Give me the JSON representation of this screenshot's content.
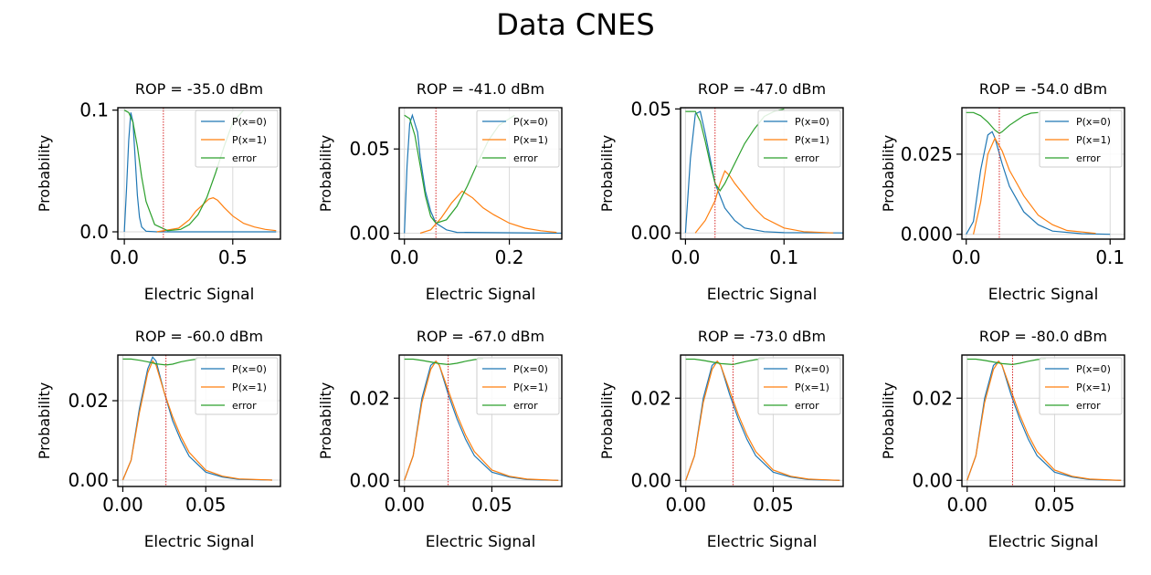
{
  "figure": {
    "title": "Data CNES"
  },
  "colors": {
    "p0": "#1f77b4",
    "p1": "#ff7f0e",
    "error": "#2ca02c",
    "threshold": "#d62728",
    "grid": "#d9d9d9"
  },
  "chart_data": [
    {
      "type": "line",
      "title": "ROP = -35.0 dBm",
      "xlabel": "Electric Signal",
      "ylabel": "Probability",
      "xlim": [
        -0.03,
        0.72
      ],
      "ylim": [
        -0.006,
        0.102
      ],
      "xticks": [
        0.0,
        0.5
      ],
      "xtick_labels": [
        "0.0",
        "0.5"
      ],
      "yticks": [
        0.0,
        0.1
      ],
      "ytick_labels": [
        "0.0",
        "0.1"
      ],
      "threshold": 0.18,
      "legend": "upper right",
      "grid": true,
      "series": [
        {
          "name": "P(x=0)",
          "x": [
            0.0,
            0.01,
            0.02,
            0.03,
            0.04,
            0.05,
            0.06,
            0.07,
            0.08,
            0.1,
            0.15,
            0.25,
            0.7
          ],
          "y": [
            0.0,
            0.035,
            0.075,
            0.098,
            0.09,
            0.06,
            0.03,
            0.012,
            0.004,
            0.0005,
            0.0,
            0.0,
            0.0
          ]
        },
        {
          "name": "P(x=1)",
          "x": [
            0.15,
            0.25,
            0.3,
            0.33,
            0.36,
            0.39,
            0.41,
            0.43,
            0.46,
            0.5,
            0.55,
            0.6,
            0.65,
            0.7
          ],
          "y": [
            0.0,
            0.003,
            0.01,
            0.017,
            0.022,
            0.027,
            0.028,
            0.026,
            0.02,
            0.013,
            0.007,
            0.004,
            0.002,
            0.001
          ]
        },
        {
          "name": "error",
          "x": [
            0.0,
            0.02,
            0.04,
            0.06,
            0.08,
            0.1,
            0.14,
            0.2,
            0.26,
            0.3,
            0.34,
            0.38,
            0.42,
            0.46,
            0.5,
            0.55
          ],
          "y": [
            0.1,
            0.098,
            0.09,
            0.07,
            0.045,
            0.025,
            0.006,
            0.001,
            0.002,
            0.006,
            0.014,
            0.028,
            0.048,
            0.07,
            0.09,
            0.1
          ]
        }
      ]
    },
    {
      "type": "line",
      "title": "ROP = -41.0 dBm",
      "xlabel": "Electric Signal",
      "ylabel": "Probability",
      "xlim": [
        -0.01,
        0.3
      ],
      "ylim": [
        -0.0035,
        0.0745
      ],
      "xticks": [
        0.0,
        0.2
      ],
      "xtick_labels": [
        "0.0",
        "0.2"
      ],
      "yticks": [
        0.0,
        0.05
      ],
      "ytick_labels": [
        "0.00",
        "0.05"
      ],
      "threshold": 0.06,
      "legend": "upper right",
      "grid": true,
      "series": [
        {
          "name": "P(x=0)",
          "x": [
            0.0,
            0.005,
            0.01,
            0.015,
            0.02,
            0.025,
            0.03,
            0.035,
            0.04,
            0.05,
            0.06,
            0.08,
            0.1,
            0.3
          ],
          "y": [
            0.0,
            0.04,
            0.065,
            0.07,
            0.065,
            0.06,
            0.045,
            0.035,
            0.025,
            0.013,
            0.006,
            0.002,
            0.0005,
            0.0
          ]
        },
        {
          "name": "P(x=1)",
          "x": [
            0.03,
            0.05,
            0.07,
            0.09,
            0.11,
            0.13,
            0.15,
            0.17,
            0.2,
            0.23,
            0.26,
            0.29
          ],
          "y": [
            0.0,
            0.002,
            0.009,
            0.018,
            0.025,
            0.021,
            0.015,
            0.011,
            0.006,
            0.003,
            0.0015,
            0.0005
          ]
        },
        {
          "name": "error",
          "x": [
            0.0,
            0.01,
            0.02,
            0.03,
            0.04,
            0.05,
            0.06,
            0.08,
            0.1,
            0.12,
            0.14,
            0.16,
            0.18,
            0.21
          ],
          "y": [
            0.07,
            0.068,
            0.058,
            0.04,
            0.022,
            0.01,
            0.006,
            0.008,
            0.016,
            0.028,
            0.042,
            0.055,
            0.064,
            0.07
          ]
        }
      ]
    },
    {
      "type": "line",
      "title": "ROP = -47.0 dBm",
      "xlabel": "Electric Signal",
      "ylabel": "Probability",
      "xlim": [
        -0.005,
        0.16
      ],
      "ylim": [
        -0.0025,
        0.0505
      ],
      "xticks": [
        0.0,
        0.1
      ],
      "xtick_labels": [
        "0.0",
        "0.1"
      ],
      "yticks": [
        0.0,
        0.05
      ],
      "ytick_labels": [
        "0.00",
        "0.05"
      ],
      "threshold": 0.03,
      "legend": "upper right",
      "grid": true,
      "series": [
        {
          "name": "P(x=0)",
          "x": [
            0.0,
            0.005,
            0.01,
            0.015,
            0.02,
            0.025,
            0.03,
            0.04,
            0.05,
            0.06,
            0.08,
            0.1,
            0.16
          ],
          "y": [
            0.0,
            0.03,
            0.048,
            0.049,
            0.04,
            0.03,
            0.02,
            0.01,
            0.005,
            0.002,
            0.0005,
            0.0001,
            0.0
          ]
        },
        {
          "name": "P(x=1)",
          "x": [
            0.01,
            0.02,
            0.03,
            0.035,
            0.04,
            0.045,
            0.05,
            0.06,
            0.07,
            0.08,
            0.1,
            0.12,
            0.15
          ],
          "y": [
            0.0,
            0.005,
            0.013,
            0.02,
            0.025,
            0.023,
            0.02,
            0.015,
            0.01,
            0.006,
            0.002,
            0.0005,
            0.0
          ]
        },
        {
          "name": "error",
          "x": [
            0.0,
            0.01,
            0.015,
            0.02,
            0.025,
            0.03,
            0.035,
            0.04,
            0.05,
            0.06,
            0.07,
            0.08,
            0.09,
            0.1
          ],
          "y": [
            0.049,
            0.049,
            0.045,
            0.037,
            0.028,
            0.02,
            0.017,
            0.02,
            0.028,
            0.036,
            0.042,
            0.047,
            0.049,
            0.05
          ]
        }
      ]
    },
    {
      "type": "line",
      "title": "ROP = -54.0 dBm",
      "xlabel": "Electric Signal",
      "ylabel": "Probability",
      "xlim": [
        -0.003,
        0.11
      ],
      "ylim": [
        -0.0015,
        0.0395
      ],
      "xticks": [
        0.0,
        0.1
      ],
      "xtick_labels": [
        "0.0",
        "0.1"
      ],
      "yticks": [
        0.0,
        0.025
      ],
      "ytick_labels": [
        "0.000",
        "0.025"
      ],
      "threshold": 0.023,
      "legend": "upper right",
      "grid": true,
      "series": [
        {
          "name": "P(x=0)",
          "x": [
            0.0,
            0.005,
            0.01,
            0.015,
            0.018,
            0.02,
            0.025,
            0.03,
            0.04,
            0.05,
            0.06,
            0.08,
            0.1
          ],
          "y": [
            0.0,
            0.004,
            0.02,
            0.031,
            0.032,
            0.03,
            0.022,
            0.015,
            0.007,
            0.003,
            0.001,
            0.0002,
            0.0
          ]
        },
        {
          "name": "P(x=1)",
          "x": [
            0.005,
            0.01,
            0.015,
            0.018,
            0.02,
            0.025,
            0.03,
            0.035,
            0.04,
            0.05,
            0.06,
            0.07,
            0.09
          ],
          "y": [
            0.0,
            0.01,
            0.025,
            0.028,
            0.03,
            0.026,
            0.02,
            0.016,
            0.012,
            0.006,
            0.003,
            0.0012,
            0.0003
          ]
        },
        {
          "name": "error",
          "x": [
            0.0,
            0.005,
            0.01,
            0.015,
            0.02,
            0.023,
            0.025,
            0.03,
            0.035,
            0.04,
            0.045,
            0.05
          ],
          "y": [
            0.038,
            0.038,
            0.037,
            0.035,
            0.0325,
            0.0315,
            0.032,
            0.034,
            0.0355,
            0.037,
            0.0378,
            0.038
          ]
        }
      ]
    },
    {
      "type": "line",
      "title": "ROP = -60.0 dBm",
      "xlabel": "Electric Signal",
      "ylabel": "Probability",
      "xlim": [
        -0.003,
        0.095
      ],
      "ylim": [
        -0.0016,
        0.0315
      ],
      "xticks": [
        0.0,
        0.05
      ],
      "xtick_labels": [
        "0.00",
        "0.05"
      ],
      "yticks": [
        0.0,
        0.02
      ],
      "ytick_labels": [
        "0.00",
        "0.02"
      ],
      "threshold": 0.026,
      "legend": "upper right",
      "grid": true,
      "series": [
        {
          "name": "P(x=0)",
          "x": [
            0.0,
            0.005,
            0.01,
            0.015,
            0.018,
            0.02,
            0.025,
            0.03,
            0.035,
            0.04,
            0.05,
            0.06,
            0.07,
            0.09
          ],
          "y": [
            0.0,
            0.005,
            0.018,
            0.028,
            0.031,
            0.03,
            0.022,
            0.015,
            0.01,
            0.006,
            0.002,
            0.0008,
            0.0002,
            0.0
          ]
        },
        {
          "name": "P(x=1)",
          "x": [
            0.0,
            0.005,
            0.01,
            0.015,
            0.018,
            0.02,
            0.025,
            0.03,
            0.035,
            0.04,
            0.05,
            0.06,
            0.07,
            0.09
          ],
          "y": [
            0.0,
            0.005,
            0.017,
            0.027,
            0.03,
            0.029,
            0.022,
            0.016,
            0.011,
            0.007,
            0.0025,
            0.001,
            0.0003,
            0.0
          ]
        },
        {
          "name": "error",
          "x": [
            0.0,
            0.005,
            0.01,
            0.015,
            0.02,
            0.026,
            0.03,
            0.035,
            0.04,
            0.045
          ],
          "y": [
            0.0305,
            0.0305,
            0.0302,
            0.0298,
            0.0293,
            0.029,
            0.0292,
            0.0298,
            0.0302,
            0.0305
          ]
        }
      ]
    },
    {
      "type": "line",
      "title": "ROP = -67.0 dBm",
      "xlabel": "Electric Signal",
      "ylabel": "Probability",
      "xlim": [
        -0.003,
        0.09
      ],
      "ylim": [
        -0.0015,
        0.0305
      ],
      "xticks": [
        0.0,
        0.05
      ],
      "xtick_labels": [
        "0.00",
        "0.05"
      ],
      "yticks": [
        0.0,
        0.02
      ],
      "ytick_labels": [
        "0.00",
        "0.02"
      ],
      "threshold": 0.025,
      "legend": "upper right",
      "grid": true,
      "series": [
        {
          "name": "P(x=0)",
          "x": [
            0.0,
            0.005,
            0.01,
            0.015,
            0.018,
            0.02,
            0.025,
            0.03,
            0.035,
            0.04,
            0.05,
            0.06,
            0.07,
            0.088
          ],
          "y": [
            0.0,
            0.006,
            0.02,
            0.028,
            0.029,
            0.028,
            0.021,
            0.015,
            0.01,
            0.006,
            0.002,
            0.0008,
            0.0002,
            0.0
          ]
        },
        {
          "name": "P(x=1)",
          "x": [
            0.0,
            0.005,
            0.01,
            0.015,
            0.018,
            0.02,
            0.025,
            0.03,
            0.035,
            0.04,
            0.05,
            0.06,
            0.07,
            0.088
          ],
          "y": [
            0.0,
            0.006,
            0.019,
            0.027,
            0.029,
            0.028,
            0.022,
            0.016,
            0.011,
            0.007,
            0.0025,
            0.001,
            0.0003,
            0.0
          ]
        },
        {
          "name": "error",
          "x": [
            0.0,
            0.005,
            0.01,
            0.015,
            0.02,
            0.025,
            0.03,
            0.035,
            0.04,
            0.045
          ],
          "y": [
            0.0295,
            0.0295,
            0.0292,
            0.0288,
            0.0284,
            0.0282,
            0.0285,
            0.029,
            0.0294,
            0.0296
          ]
        }
      ]
    },
    {
      "type": "line",
      "title": "ROP = -73.0 dBm",
      "xlabel": "Electric Signal",
      "ylabel": "Probability",
      "xlim": [
        -0.003,
        0.09
      ],
      "ylim": [
        -0.0015,
        0.0305
      ],
      "xticks": [
        0.0,
        0.05
      ],
      "xtick_labels": [
        "0.00",
        "0.05"
      ],
      "yticks": [
        0.0,
        0.02
      ],
      "ytick_labels": [
        "0.00",
        "0.02"
      ],
      "threshold": 0.027,
      "legend": "upper right",
      "grid": true,
      "series": [
        {
          "name": "P(x=0)",
          "x": [
            0.0,
            0.005,
            0.01,
            0.015,
            0.018,
            0.02,
            0.025,
            0.03,
            0.035,
            0.04,
            0.05,
            0.06,
            0.07,
            0.088
          ],
          "y": [
            0.0,
            0.006,
            0.02,
            0.028,
            0.029,
            0.028,
            0.021,
            0.015,
            0.01,
            0.006,
            0.002,
            0.0008,
            0.0002,
            0.0
          ]
        },
        {
          "name": "P(x=1)",
          "x": [
            0.0,
            0.005,
            0.01,
            0.015,
            0.018,
            0.02,
            0.025,
            0.03,
            0.035,
            0.04,
            0.05,
            0.06,
            0.07,
            0.088
          ],
          "y": [
            0.0,
            0.006,
            0.019,
            0.027,
            0.029,
            0.028,
            0.022,
            0.016,
            0.011,
            0.007,
            0.0025,
            0.001,
            0.0003,
            0.0
          ]
        },
        {
          "name": "error",
          "x": [
            0.0,
            0.005,
            0.01,
            0.015,
            0.02,
            0.027,
            0.03,
            0.035,
            0.04,
            0.045
          ],
          "y": [
            0.0295,
            0.0295,
            0.0292,
            0.0288,
            0.0284,
            0.0282,
            0.0285,
            0.029,
            0.0294,
            0.0296
          ]
        }
      ]
    },
    {
      "type": "line",
      "title": "ROP = -80.0 dBm",
      "xlabel": "Electric Signal",
      "ylabel": "Probability",
      "xlim": [
        -0.003,
        0.09
      ],
      "ylim": [
        -0.0015,
        0.0305
      ],
      "xticks": [
        0.0,
        0.05
      ],
      "xtick_labels": [
        "0.00",
        "0.05"
      ],
      "yticks": [
        0.0,
        0.02
      ],
      "ytick_labels": [
        "0.00",
        "0.02"
      ],
      "threshold": 0.026,
      "legend": "upper right",
      "grid": true,
      "series": [
        {
          "name": "P(x=0)",
          "x": [
            0.0,
            0.005,
            0.01,
            0.015,
            0.018,
            0.02,
            0.025,
            0.03,
            0.035,
            0.04,
            0.05,
            0.06,
            0.07,
            0.088
          ],
          "y": [
            0.0,
            0.006,
            0.02,
            0.028,
            0.029,
            0.028,
            0.021,
            0.015,
            0.01,
            0.006,
            0.002,
            0.0008,
            0.0002,
            0.0
          ]
        },
        {
          "name": "P(x=1)",
          "x": [
            0.0,
            0.005,
            0.01,
            0.015,
            0.018,
            0.02,
            0.025,
            0.03,
            0.035,
            0.04,
            0.05,
            0.06,
            0.07,
            0.088
          ],
          "y": [
            0.0,
            0.006,
            0.019,
            0.027,
            0.029,
            0.028,
            0.022,
            0.016,
            0.011,
            0.007,
            0.0025,
            0.001,
            0.0003,
            0.0
          ]
        },
        {
          "name": "error",
          "x": [
            0.0,
            0.005,
            0.01,
            0.015,
            0.02,
            0.026,
            0.03,
            0.035,
            0.04,
            0.045
          ],
          "y": [
            0.0295,
            0.0295,
            0.0292,
            0.0288,
            0.0284,
            0.0282,
            0.0285,
            0.029,
            0.0294,
            0.0296
          ]
        }
      ]
    }
  ]
}
